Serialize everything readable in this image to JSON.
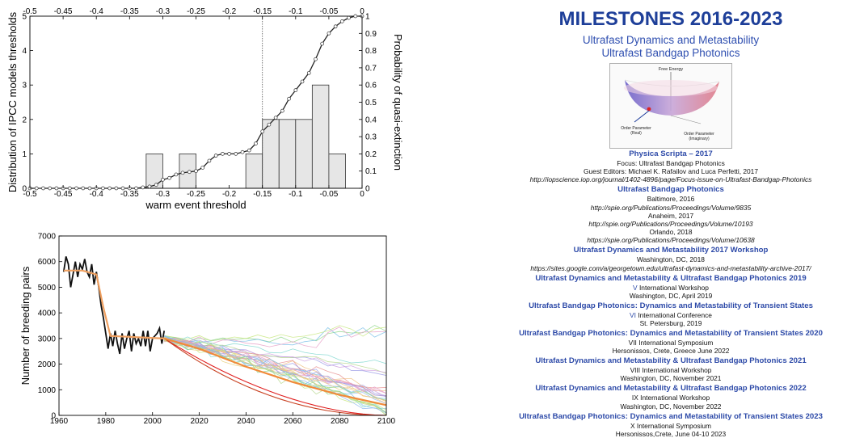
{
  "chart_data": [
    {
      "type": "bar",
      "overlay_type": "line",
      "xlabel": "warm event threshold",
      "ylabel": "Distribution of IPCC models thresholds",
      "ylabel_right": "Probability of quasi-extinction",
      "xlim": [
        -0.5,
        0
      ],
      "ylim": [
        0,
        5
      ],
      "ylim_right": [
        0,
        1
      ],
      "x_ticks": [
        "-0.5",
        "-0.45",
        "-0.4",
        "-0.35",
        "-0.3",
        "-0.25",
        "-0.2",
        "-0.15",
        "-0.1",
        "-0.05",
        "0"
      ],
      "y_ticks": [
        "0",
        "1",
        "2",
        "3",
        "4",
        "5"
      ],
      "y_ticks_right": [
        "0",
        "0.1",
        "0.2",
        "0.3",
        "0.4",
        "0.5",
        "0.6",
        "0.7",
        "0.8",
        "0.9",
        "1"
      ],
      "vline_x": -0.15,
      "bars": [
        {
          "x0": -0.325,
          "x1": -0.3,
          "value": 1
        },
        {
          "x0": -0.275,
          "x1": -0.25,
          "value": 1
        },
        {
          "x0": -0.175,
          "x1": -0.15,
          "value": 1
        },
        {
          "x0": -0.15,
          "x1": -0.125,
          "value": 2
        },
        {
          "x0": -0.125,
          "x1": -0.1,
          "value": 2
        },
        {
          "x0": -0.1,
          "x1": -0.075,
          "value": 2
        },
        {
          "x0": -0.075,
          "x1": -0.05,
          "value": 3
        },
        {
          "x0": -0.05,
          "x1": -0.025,
          "value": 1
        }
      ],
      "curve": {
        "x": [
          -0.5,
          -0.49,
          -0.48,
          -0.47,
          -0.46,
          -0.45,
          -0.44,
          -0.43,
          -0.42,
          -0.41,
          -0.4,
          -0.39,
          -0.38,
          -0.37,
          -0.36,
          -0.35,
          -0.34,
          -0.33,
          -0.32,
          -0.31,
          -0.3,
          -0.29,
          -0.28,
          -0.27,
          -0.26,
          -0.25,
          -0.24,
          -0.23,
          -0.22,
          -0.21,
          -0.2,
          -0.19,
          -0.18,
          -0.17,
          -0.16,
          -0.15,
          -0.14,
          -0.13,
          -0.12,
          -0.11,
          -0.1,
          -0.09,
          -0.08,
          -0.07,
          -0.06,
          -0.05,
          -0.04,
          -0.03,
          -0.02,
          -0.01,
          0
        ],
        "y": [
          0,
          0,
          0,
          0,
          0,
          0,
          0,
          0,
          0,
          0,
          0,
          0,
          0,
          0,
          0,
          0,
          0,
          0.005,
          0.01,
          0.02,
          0.05,
          0.06,
          0.08,
          0.09,
          0.095,
          0.1,
          0.12,
          0.16,
          0.19,
          0.2,
          0.2,
          0.2,
          0.21,
          0.22,
          0.26,
          0.33,
          0.37,
          0.41,
          0.45,
          0.52,
          0.57,
          0.62,
          0.67,
          0.75,
          0.84,
          0.9,
          0.94,
          0.97,
          0.99,
          1.0,
          1.0
        ]
      }
    },
    {
      "type": "line",
      "ylabel": "Number of breeding pairs",
      "xlabel": "",
      "xlim": [
        1960,
        2100
      ],
      "ylim": [
        0,
        7000
      ],
      "x_ticks": [
        "1960",
        "1980",
        "2000",
        "2020",
        "2040",
        "2060",
        "2080",
        "2100"
      ],
      "y_ticks": [
        "0",
        "1000",
        "2000",
        "3000",
        "4000",
        "5000",
        "6000",
        "7000"
      ],
      "observed": {
        "x": [
          1962,
          1963,
          1964,
          1965,
          1966,
          1967,
          1968,
          1969,
          1970,
          1971,
          1972,
          1973,
          1974,
          1975,
          1976,
          1977,
          1978,
          1979,
          1980,
          1981,
          1982,
          1983,
          1984,
          1985,
          1986,
          1987,
          1988,
          1989,
          1990,
          1991,
          1992,
          1993,
          1994,
          1995,
          1996,
          1997,
          1998,
          1999,
          2000,
          2001,
          2002,
          2003,
          2004,
          2005
        ],
        "y": [
          5600,
          6200,
          5900,
          5000,
          5500,
          6000,
          5400,
          5900,
          5700,
          6100,
          5600,
          5400,
          5900,
          5100,
          5600,
          5000,
          4300,
          3800,
          3200,
          2600,
          3200,
          2700,
          3300,
          2800,
          2400,
          3200,
          2600,
          3000,
          3300,
          2500,
          3200,
          2800,
          3000,
          2700,
          3300,
          2700,
          3300,
          2500,
          3000,
          3100,
          3200,
          3400,
          2800,
          3300
        ]
      },
      "fit": {
        "x": [
          1962,
          1970,
          1976,
          1979,
          1982,
          2005
        ],
        "y": [
          5650,
          5650,
          5500,
          4200,
          3100,
          3000
        ]
      },
      "projection_mean": {
        "x": [
          2005,
          2020,
          2040,
          2060,
          2080,
          2100
        ],
        "y": [
          3000,
          2600,
          1900,
          1300,
          800,
          400
        ]
      }
    }
  ],
  "milestones": {
    "title": "MILESTONES 2016-2023",
    "subtitle1": "Ultrafast Dynamics and Metastability",
    "subtitle2": "Ultrafast Bandgap Photonics",
    "diagram": {
      "top_label": "Free Energy",
      "left_label1": "Order Parameter",
      "left_label2": "(Real)",
      "right_label1": "Order Parameter",
      "right_label2": "(Imaginary)"
    },
    "lines": [
      {
        "text": "Physica Scripta – 2017",
        "style": "hd"
      },
      {
        "text": "Focus: Ultrafast Bandgap Photonics",
        "style": "tx"
      },
      {
        "text": "Guest Editors: Michael K. Rafailov and Luca Perfetti, 2017",
        "style": "tx"
      },
      {
        "text": "http://iopscience.iop.org/journal/1402-4896/page/Focus-issue-on-Ultrafast-Bandgap-Photonics",
        "style": "it"
      },
      {
        "text": "Ultrafast Bandgap Photonics",
        "style": "hd"
      },
      {
        "text": "Baltimore, 2016",
        "style": "tx"
      },
      {
        "text": "http://spie.org/Publications/Proceedings/Volume/9835",
        "style": "it"
      },
      {
        "text": "Anaheim, 2017",
        "style": "tx"
      },
      {
        "text": "http://spie.org/Publications/Proceedings/Volume/10193",
        "style": "it"
      },
      {
        "text": "Orlando, 2018",
        "style": "tx"
      },
      {
        "text": "https://spie.org/Publications/Proceedings/Volume/10638",
        "style": "it"
      },
      {
        "text": "Ultrafast Dynamics and Metastability 2017 Workshop",
        "style": "hd"
      },
      {
        "text": "Washington, DC, 2018",
        "style": "tx"
      },
      {
        "text": "https://sites.google.com/a/georgetown.edu/ultrafast-dynamics-and-metastability-archive-2017/",
        "style": "it"
      },
      {
        "text": "Ultrafast Dynamics and Metastability & Ultrafast Bandgap Photonics 2019",
        "style": "hd"
      },
      {
        "text": "V International Workshop",
        "style": "tx",
        "roman": "V"
      },
      {
        "text": "Washington, DC, April 2019",
        "style": "tx"
      },
      {
        "text": "Ultrafast Bandgap Photonics: Dynamics and Metastability of Transient States",
        "style": "hd"
      },
      {
        "text": "VI International Conference",
        "style": "tx",
        "roman": "VI"
      },
      {
        "text": "St. Petersburg, 2019",
        "style": "tx"
      },
      {
        "text": "Ultrafast Bandgap Photonics: Dynamics and Metastability of Transient States 2020",
        "style": "hd"
      },
      {
        "text": "VII International Symposium",
        "style": "tx"
      },
      {
        "text": "Hersonissos, Crete, Greece June 2022",
        "style": "tx"
      },
      {
        "text": "Ultrafast Dynamics and Metastability & Ultrafast Bandgap Photonics 2021",
        "style": "hd"
      },
      {
        "text": "VIII International Workshop",
        "style": "tx"
      },
      {
        "text": "Washington, DC, November 2021",
        "style": "tx"
      },
      {
        "text": "Ultrafast Dynamics and Metastability & Ultrafast Bandgap Photonics 2022",
        "style": "hd"
      },
      {
        "text": "IX International Workshop",
        "style": "tx"
      },
      {
        "text": "Washington, DC, November 2022",
        "style": "tx"
      },
      {
        "text": "Ultrafast Bandgap Photonics: Dynamics and Metastability of Transient States 2023",
        "style": "hd"
      },
      {
        "text": "X International Symposium",
        "style": "tx"
      },
      {
        "text": "Hersonissos,Crete, June 04-10 2023",
        "style": "tx"
      }
    ]
  }
}
